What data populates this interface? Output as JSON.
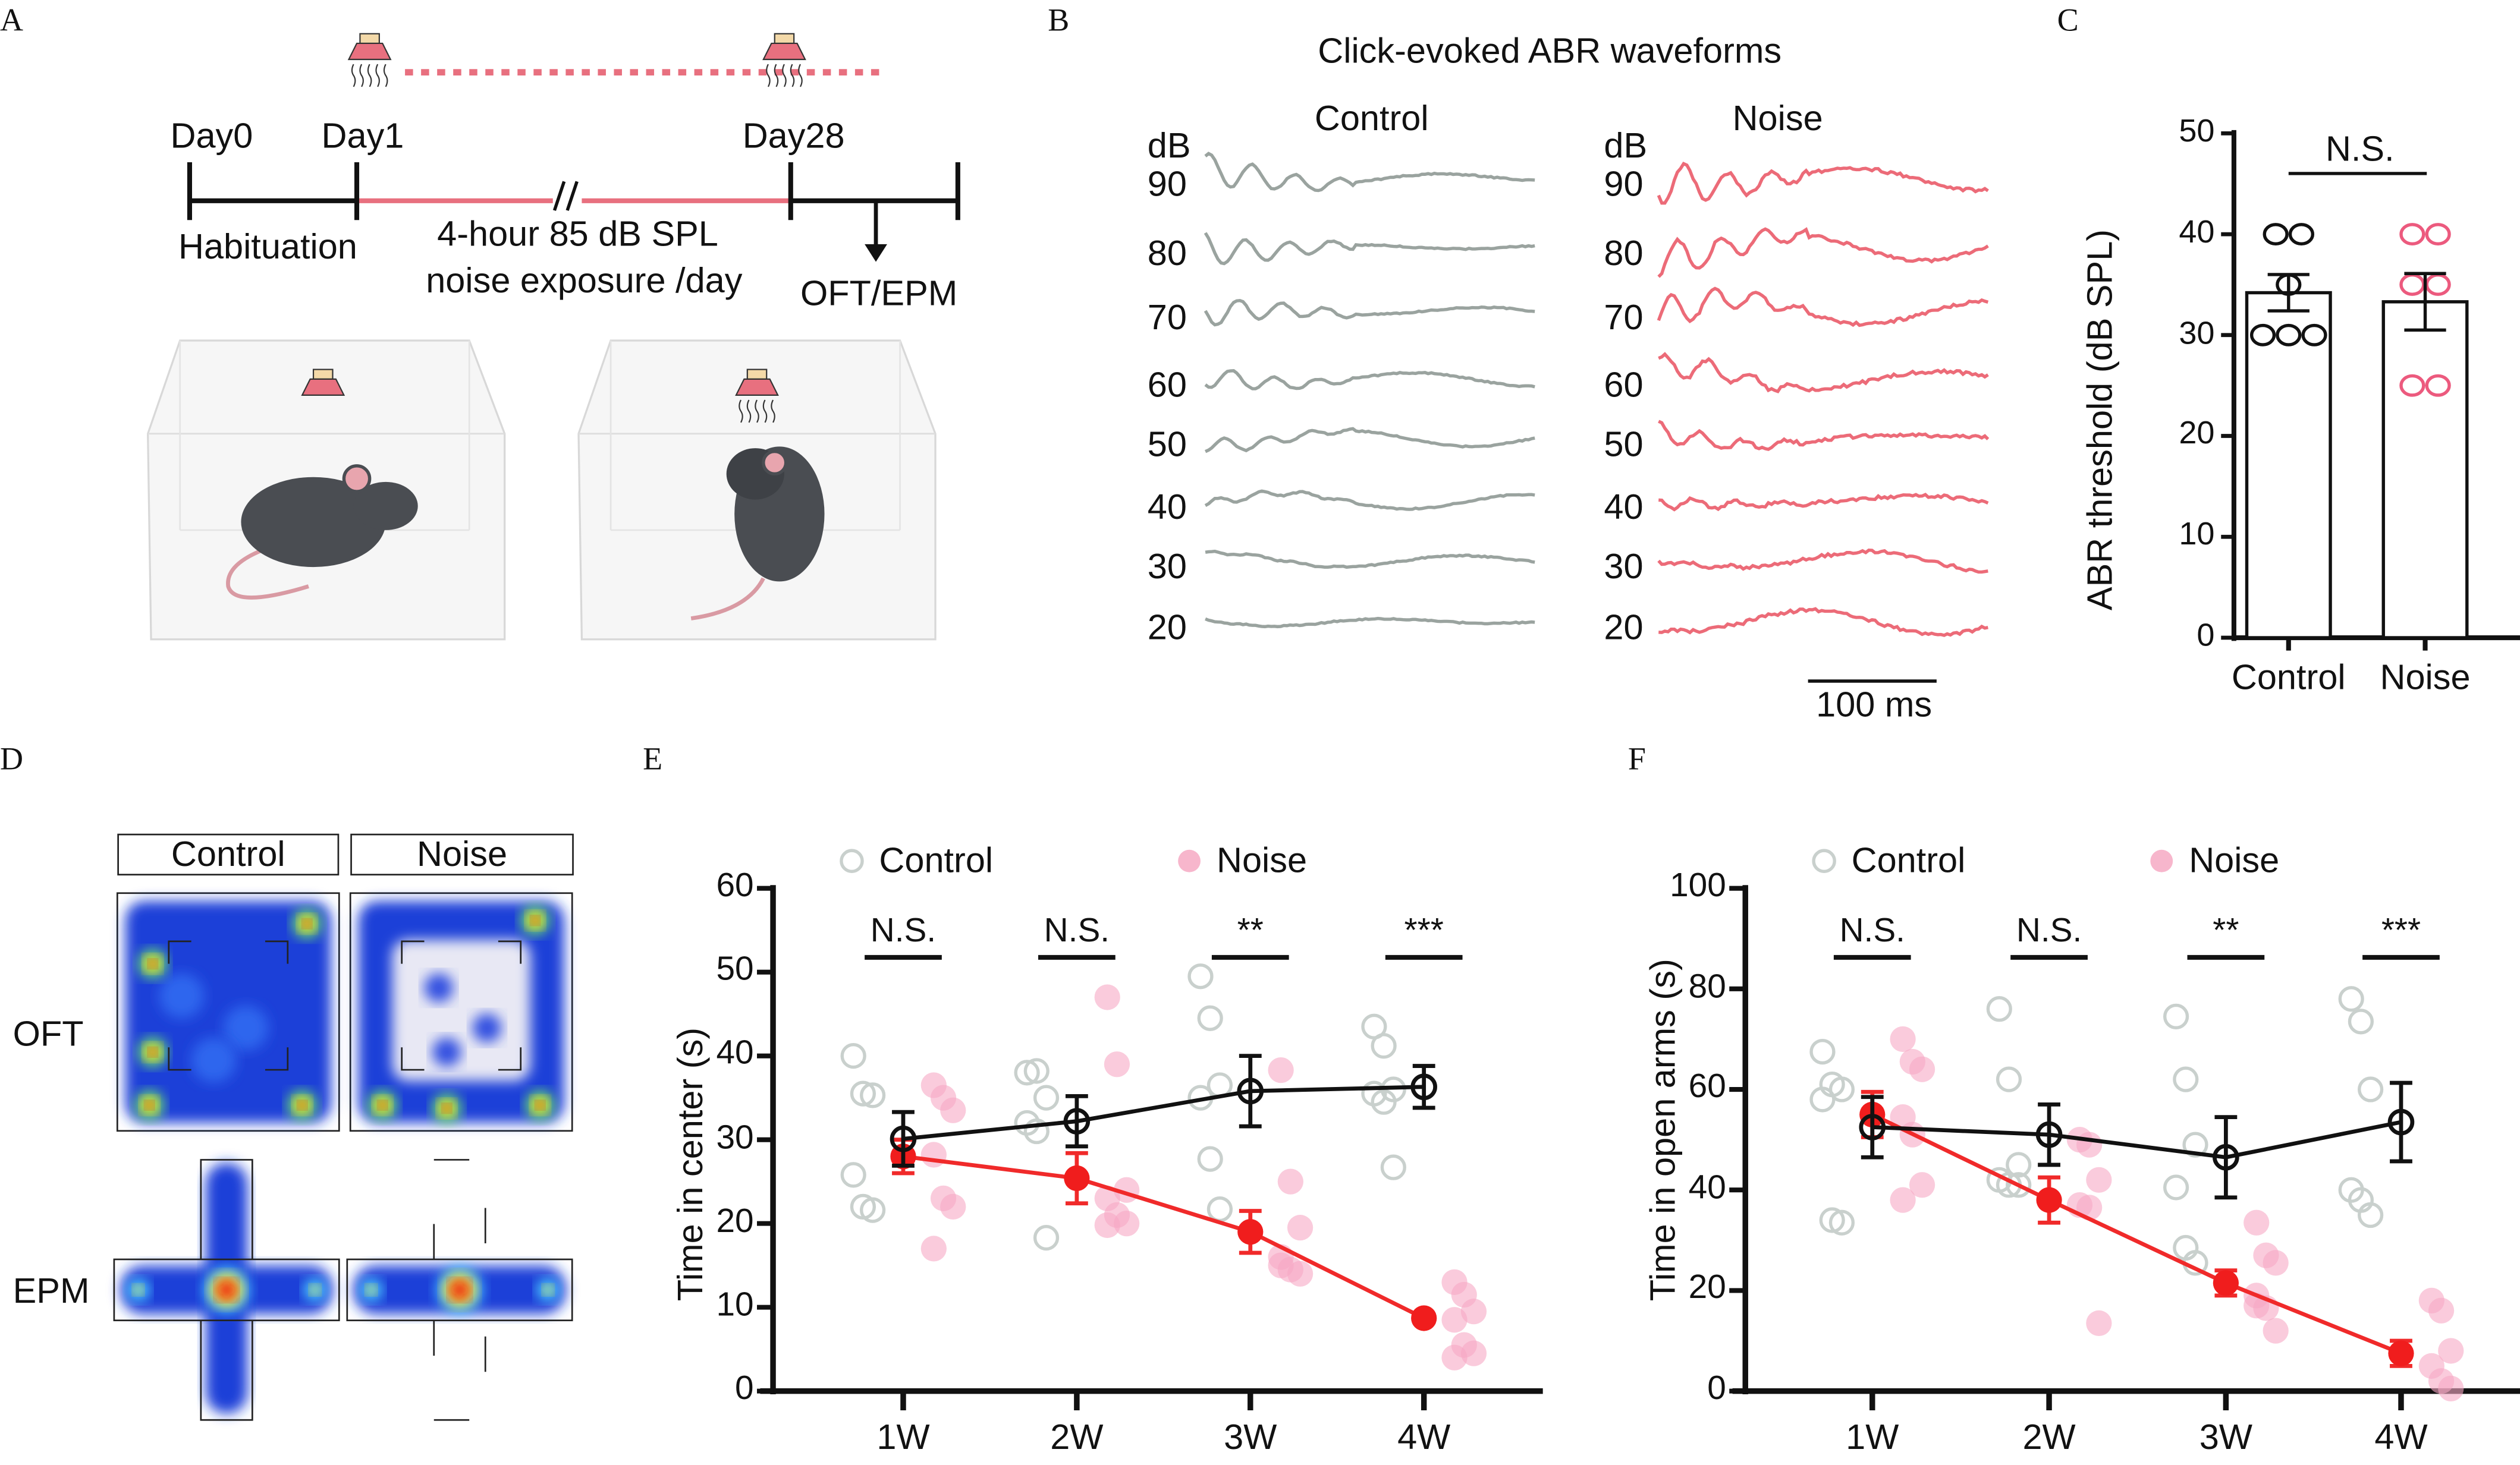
{
  "panel_labels": {
    "a": "A",
    "b": "B",
    "c": "C",
    "d": "D",
    "e": "E",
    "f": "F"
  },
  "panel_a": {
    "days": [
      "Day0",
      "Day1",
      "Day28"
    ],
    "habituation": "Habituation",
    "exposure_line1": "4-hour 85 dB SPL",
    "exposure_line2": "noise exposure /day",
    "test": "OFT/EPM",
    "colors": {
      "noise": "#e8707f",
      "speaker": "#f3d9a8"
    }
  },
  "panel_b": {
    "title": "Click-evoked ABR  waveforms",
    "groups": [
      "Control",
      "Noise"
    ],
    "unit": "dB",
    "levels": [
      "90",
      "80",
      "70",
      "60",
      "50",
      "40",
      "30",
      "20"
    ],
    "scale_bar": "100 ms",
    "colors": {
      "control": "#9aa39f",
      "noise": "#ec6b78"
    }
  },
  "panel_d": {
    "groups": [
      "Control",
      "Noise"
    ],
    "rows": [
      "OFT",
      "EPM"
    ]
  },
  "chart_data": [
    {
      "id": "C",
      "type": "bar",
      "ylabel": "ABR threshold (dB SPL)",
      "categories": [
        "Control",
        "Noise"
      ],
      "means": [
        34.2,
        33.3
      ],
      "sem": [
        1.8,
        2.8
      ],
      "points": [
        [
          40,
          40,
          35,
          30,
          30,
          30
        ],
        [
          40,
          40,
          35,
          35,
          25,
          25
        ]
      ],
      "point_colors": [
        "#111111",
        "#ec5a7e"
      ],
      "ylim": [
        0,
        50
      ],
      "yticks": [
        "0",
        "10",
        "20",
        "30",
        "40",
        "50"
      ],
      "significance": "N.S."
    },
    {
      "id": "E",
      "type": "line",
      "ylabel": "Time in center (s)",
      "categories": [
        "1W",
        "2W",
        "3W",
        "4W"
      ],
      "ylim": [
        0,
        60
      ],
      "yticks": [
        "0",
        "10",
        "20",
        "30",
        "40",
        "50",
        "60"
      ],
      "legend": [
        "Control",
        "Noise"
      ],
      "legend_position": "top",
      "significance": [
        "N.S.",
        "N.S.",
        "**",
        "***"
      ],
      "series": [
        {
          "name": "Control",
          "color": "#111111",
          "means": [
            30.1,
            32.2,
            35.8,
            36.3
          ],
          "sem": [
            3.2,
            3.0,
            4.2,
            2.5
          ],
          "points": [
            [
              40,
              35.5,
              35.3,
              25.8,
              22,
              21.6
            ],
            [
              38,
              38.2,
              35,
              32,
              31,
              18.3
            ],
            [
              49.5,
              44.5,
              36.5,
              35,
              27.7,
              21.7
            ],
            [
              43.5,
              41.2,
              36,
              35.5,
              34.5,
              26.7
            ]
          ]
        },
        {
          "name": "Noise",
          "color": "#f02a2a",
          "means": [
            28,
            25.4,
            19,
            8.7
          ],
          "sem": [
            2,
            3,
            2.5,
            0.5
          ],
          "points": [
            [
              36.5,
              35,
              33.5,
              28.2,
              23,
              22,
              17
            ],
            [
              47,
              39,
              24,
              23,
              21,
              20,
              19.8
            ],
            [
              38.3,
              25,
              19.5,
              16,
              14.5,
              14,
              15
            ],
            [
              13,
              11.5,
              9.5,
              8.5,
              5.5,
              4.5,
              4
            ]
          ]
        }
      ]
    },
    {
      "id": "F",
      "type": "line",
      "ylabel": "Time in open arms (s)",
      "categories": [
        "1W",
        "2W",
        "3W",
        "4W"
      ],
      "ylim": [
        0,
        100
      ],
      "yticks": [
        "0",
        "20",
        "40",
        "60",
        "80",
        "100"
      ],
      "legend": [
        "Control",
        "Noise"
      ],
      "legend_position": "top",
      "significance": [
        "N.S.",
        "N.S.",
        "**",
        "***"
      ],
      "series": [
        {
          "name": "Control",
          "color": "#111111",
          "means": [
            52.5,
            51,
            46.5,
            53.5
          ],
          "sem": [
            6,
            6,
            8,
            7.8
          ],
          "points": [
            [
              67.5,
              61,
              60,
              58,
              34,
              33.5
            ],
            [
              76,
              62,
              45,
              42,
              41,
              41
            ],
            [
              74.5,
              62,
              49,
              40.5,
              28.5,
              25.5
            ],
            [
              78,
              73.5,
              60,
              40,
              38,
              35
            ]
          ]
        },
        {
          "name": "Noise",
          "color": "#f02a2a",
          "means": [
            55,
            38,
            21.5,
            7.5
          ],
          "sem": [
            4.5,
            4.5,
            2.5,
            2.5
          ],
          "points": [
            [
              70,
              65.5,
              64,
              54.5,
              51,
              41,
              38
            ],
            [
              50,
              49,
              42,
              37,
              36.5,
              13.5
            ],
            [
              33.5,
              27,
              25.5,
              19,
              16.5,
              12,
              17
            ],
            [
              18,
              16,
              8,
              5,
              2,
              0.5
            ]
          ]
        }
      ]
    }
  ]
}
